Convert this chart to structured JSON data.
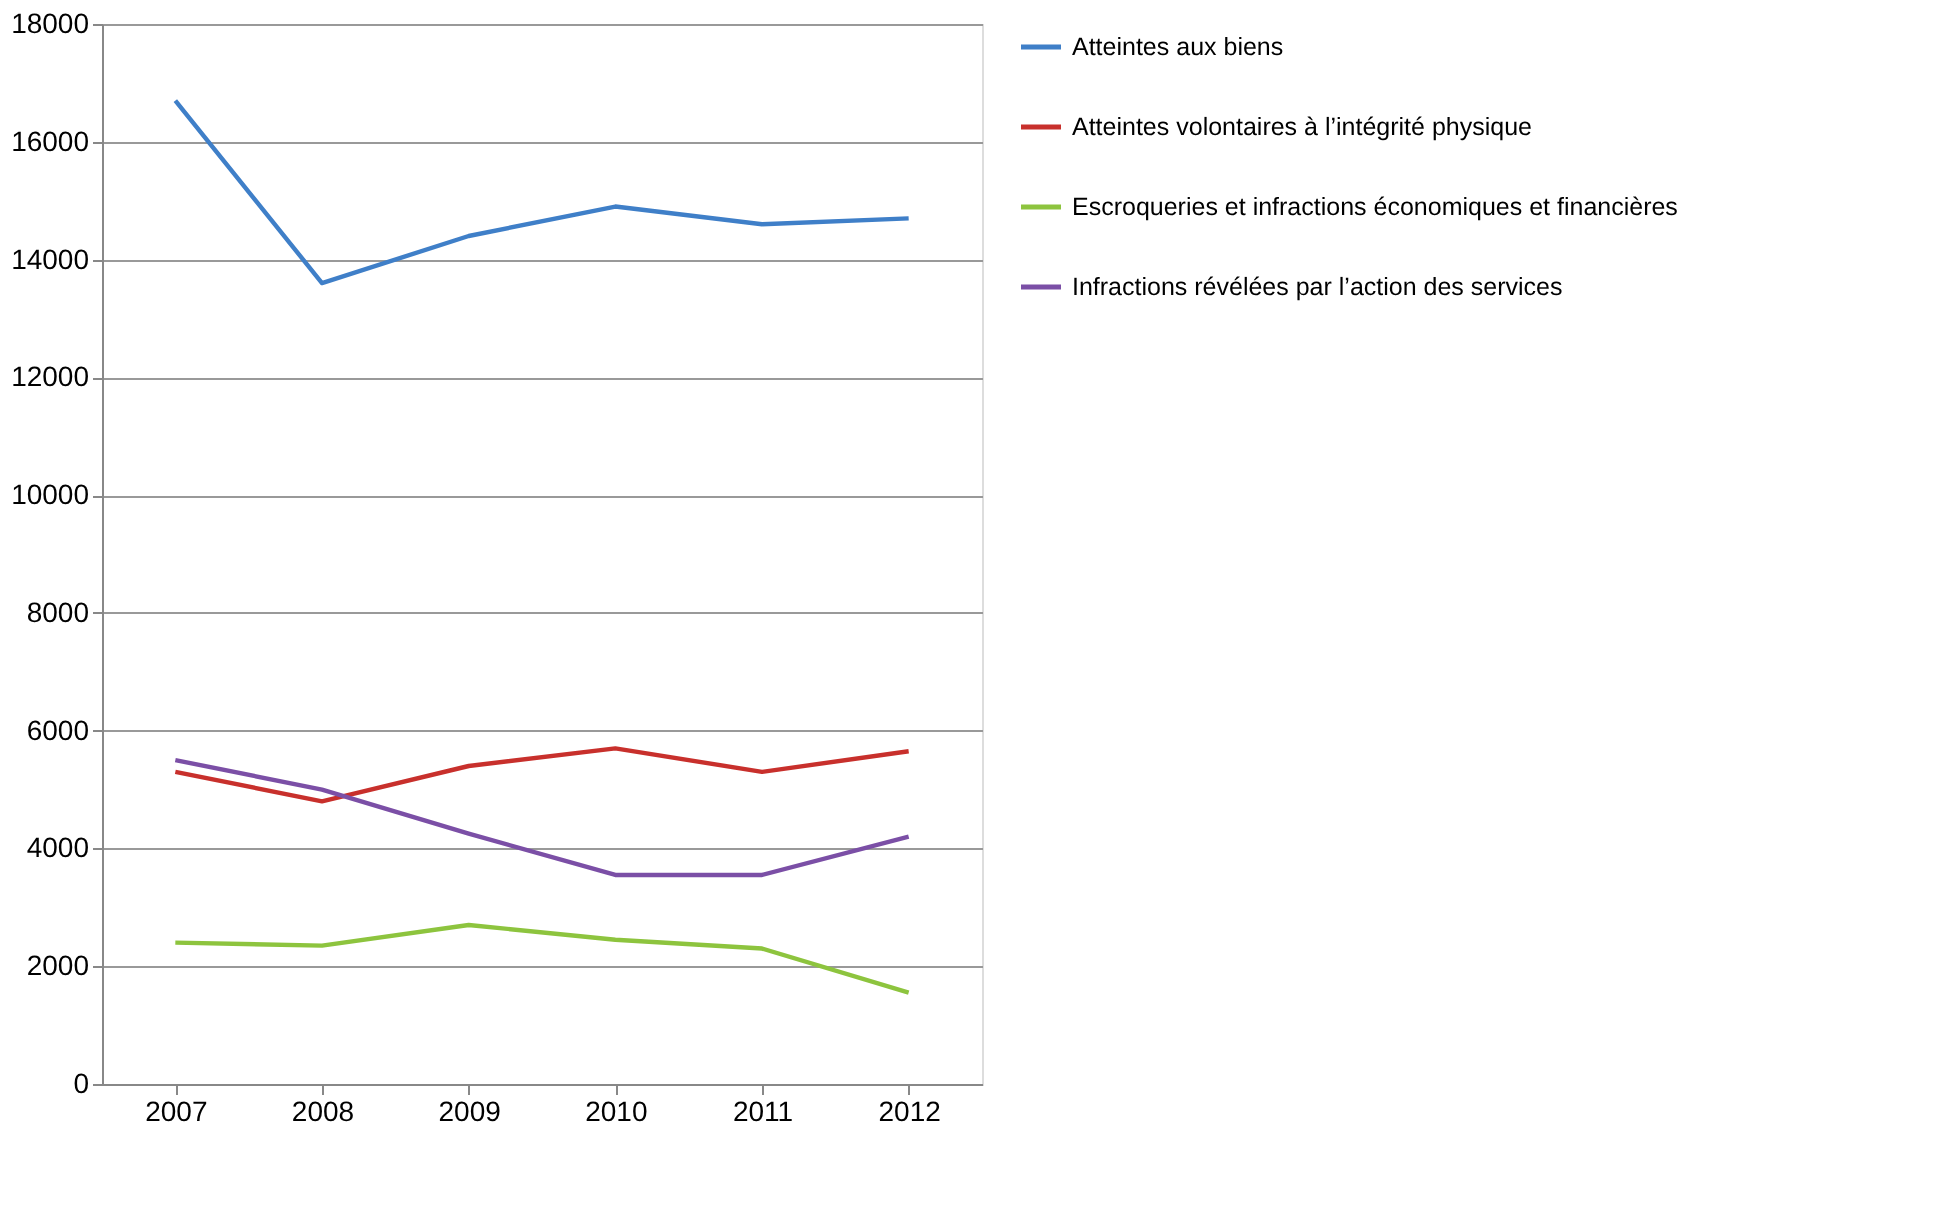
{
  "chart_data": {
    "type": "line",
    "categories": [
      "2007",
      "2008",
      "2009",
      "2010",
      "2011",
      "2012"
    ],
    "series": [
      {
        "name": "Atteintes aux biens",
        "color": "#3f7fc8",
        "values": [
          16700,
          13600,
          14400,
          14900,
          14600,
          14700
        ]
      },
      {
        "name": "Atteintes volontaires à l’intégrité physique",
        "color": "#c8302c",
        "values": [
          5300,
          4800,
          5400,
          5700,
          5300,
          5650
        ]
      },
      {
        "name": "Escroqueries et infractions économiques et financières",
        "color": "#8dc43e",
        "values": [
          2400,
          2350,
          2700,
          2450,
          2300,
          1550
        ]
      },
      {
        "name": "Infractions révélées par l’action des services",
        "color": "#7b4fa6",
        "values": [
          5500,
          5000,
          4250,
          3550,
          3550,
          4200
        ]
      }
    ],
    "ylim": [
      0,
      18000
    ],
    "yticks": [
      0,
      2000,
      4000,
      6000,
      8000,
      10000,
      12000,
      14000,
      16000,
      18000
    ],
    "grid": "y",
    "legend": "right",
    "marker": "none",
    "line_style": "solid"
  }
}
